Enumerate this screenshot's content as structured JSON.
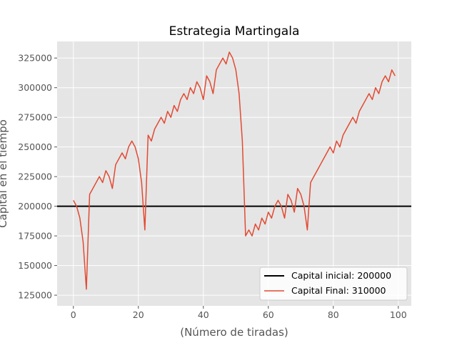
{
  "chart_data": {
    "type": "line",
    "title": "Estrategia Martingala",
    "xlabel": "(Número de tiradas)",
    "ylabel": "Capital en el tiempo",
    "xlim": [
      -5,
      104
    ],
    "ylim": [
      116000,
      339000
    ],
    "xticks": [
      0,
      20,
      40,
      60,
      80,
      100
    ],
    "yticks": [
      125000,
      150000,
      175000,
      200000,
      225000,
      250000,
      275000,
      300000,
      325000
    ],
    "grid": true,
    "legend_position": "lower-right",
    "colors": {
      "background": "#e5e5e5",
      "grid": "#ffffff",
      "series": "#e24a33",
      "baseline": "#000000"
    },
    "baseline": {
      "name": "Capital inicial: 200000",
      "value": 200000
    },
    "series": [
      {
        "name": "Capital Final: 310000",
        "x": [
          0,
          1,
          2,
          3,
          4,
          5,
          6,
          7,
          8,
          9,
          10,
          11,
          12,
          13,
          14,
          15,
          16,
          17,
          18,
          19,
          20,
          21,
          22,
          23,
          24,
          25,
          26,
          27,
          28,
          29,
          30,
          31,
          32,
          33,
          34,
          35,
          36,
          37,
          38,
          39,
          40,
          41,
          42,
          43,
          44,
          45,
          46,
          47,
          48,
          49,
          50,
          51,
          52,
          53,
          54,
          55,
          56,
          57,
          58,
          59,
          60,
          61,
          62,
          63,
          64,
          65,
          66,
          67,
          68,
          69,
          70,
          71,
          72,
          73,
          74,
          75,
          76,
          77,
          78,
          79,
          80,
          81,
          82,
          83,
          84,
          85,
          86,
          87,
          88,
          89,
          90,
          91,
          92,
          93,
          94,
          95,
          96,
          97,
          98,
          99
        ],
        "values": [
          205000,
          200000,
          190000,
          170000,
          130000,
          210000,
          215000,
          220000,
          225000,
          220000,
          230000,
          225000,
          215000,
          235000,
          240000,
          245000,
          240000,
          250000,
          255000,
          250000,
          240000,
          220000,
          180000,
          260000,
          255000,
          265000,
          270000,
          275000,
          270000,
          280000,
          275000,
          285000,
          280000,
          290000,
          295000,
          290000,
          300000,
          295000,
          305000,
          300000,
          290000,
          310000,
          305000,
          295000,
          315000,
          320000,
          325000,
          320000,
          330000,
          325000,
          315000,
          295000,
          255000,
          175000,
          180000,
          175000,
          185000,
          180000,
          190000,
          185000,
          195000,
          190000,
          200000,
          205000,
          200000,
          190000,
          210000,
          205000,
          195000,
          215000,
          210000,
          200000,
          180000,
          220000,
          225000,
          230000,
          235000,
          240000,
          245000,
          250000,
          245000,
          255000,
          250000,
          260000,
          265000,
          270000,
          275000,
          270000,
          280000,
          285000,
          290000,
          295000,
          290000,
          300000,
          295000,
          305000,
          310000,
          305000,
          315000,
          310000
        ]
      }
    ]
  }
}
